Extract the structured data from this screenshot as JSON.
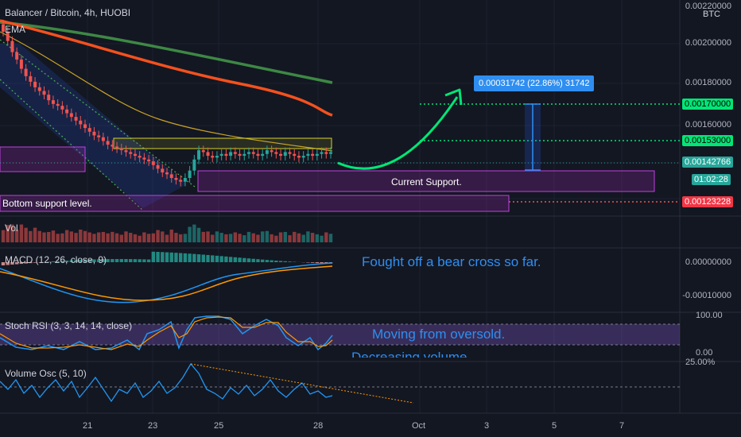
{
  "header": {
    "title": "Balancer / Bitcoin, 4h, HUOBI",
    "ema_label": "EMA",
    "currency": "BTC"
  },
  "price_axis": {
    "labels": [
      "0.00220000",
      "0.00200000",
      "0.00180000",
      "0.00160000",
      "0.00123228"
    ],
    "tags": {
      "p170": "0.00170000",
      "p153": "0.00153000",
      "p142": "0.00142766",
      "timer": "01:02:28",
      "p123": "0.00123228"
    }
  },
  "indicators": {
    "vol": "Vol",
    "macd": "MACD (12, 26, close, 9)",
    "macd_ticks": [
      "0.00000000",
      "-0.00010000"
    ],
    "stoch": "Stoch RSI (3, 3, 14, 14, close)",
    "stoch_ticks": [
      "100.00",
      "0.00"
    ],
    "volosc": "Volume Osc (5, 10)",
    "volosc_tick": "25.00%"
  },
  "annotations": {
    "measure": "0.00031742 (22.86%) 31742",
    "current_support": "Current Support.",
    "bottom_support": "Bottom support level.",
    "macd_note": "Fought off a bear cross so far.",
    "stoch_note": "Moving from oversold.",
    "vol_note": "Decreasing volume."
  },
  "time_axis": [
    "21",
    "23",
    "25",
    "28",
    "Oct",
    "3",
    "5",
    "7"
  ],
  "colors": {
    "background": "#131722",
    "up": "#26a69a",
    "down": "#ef5350",
    "ema_fast": "#f4511e",
    "ema_slow": "#4caf50",
    "ema_mid": "#c9a227",
    "support_box": "#9c27b0",
    "resistance_box": "#d4d027",
    "target_line": "#00e676",
    "annotation_blue": "#2f8ef0"
  },
  "chart_data": {
    "type": "candlestick",
    "symbol": "Balancer / Bitcoin",
    "interval": "4h",
    "exchange": "HUOBI",
    "ylim": [
      0.0012,
      0.0022
    ],
    "levels": {
      "target_high": 0.0017,
      "target_mid": 0.00153,
      "last_price": 0.00142766,
      "bottom_support": 0.00123228
    },
    "measure": {
      "from": 0.00139,
      "to": 0.0017,
      "delta": 0.00031742,
      "pct": 22.86
    },
    "closes_approx": [
      0.00208,
      0.00203,
      0.00197,
      0.00193,
      0.00188,
      0.00184,
      0.00181,
      0.00178,
      0.00176,
      0.00174,
      0.00171,
      0.00169,
      0.00168,
      0.00166,
      0.00164,
      0.00162,
      0.0016,
      0.00158,
      0.00156,
      0.00154,
      0.00152,
      0.00151,
      0.00149,
      0.00147,
      0.00146,
      0.00145,
      0.00144,
      0.00143,
      0.00142,
      0.00141,
      0.0014,
      0.00139,
      0.00138,
      0.00136,
      0.00134,
      0.00132,
      0.00131,
      0.00129,
      0.00128,
      0.00127,
      0.00129,
      0.00133,
      0.00139,
      0.00144,
      0.00143,
      0.00141,
      0.0014,
      0.00141,
      0.00142,
      0.00141,
      0.00143,
      0.00142,
      0.00141,
      0.00142,
      0.00143,
      0.00142,
      0.00141,
      0.00142,
      0.00144,
      0.00143,
      0.00142,
      0.00141,
      0.00143,
      0.00142,
      0.00141,
      0.0014,
      0.00141,
      0.00142,
      0.00141,
      0.00142,
      0.00143,
      0.00142,
      0.00143
    ],
    "ema_fast": {
      "start": 0.00213,
      "end": 0.00166
    },
    "ema_slow": {
      "start": 0.00212,
      "end": 0.0018
    },
    "stoch_rsi_range": [
      0,
      100
    ],
    "volume_osc_tick": 25
  }
}
